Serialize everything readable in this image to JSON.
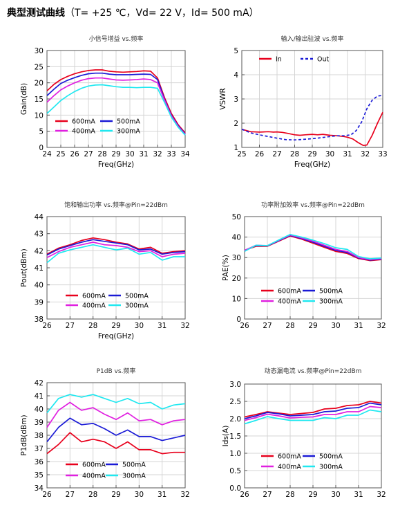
{
  "header": {
    "title": "典型测试曲线",
    "conditions": "（T= +25 ℃，Vd= 22 V，Id= 500 mA）"
  },
  "chart_data": [
    {
      "type": "line",
      "title": "小信号增益 vs.频率",
      "xlabel": "Freq(GHz)",
      "ylabel": "Gain(dB)",
      "xlim": [
        24,
        34
      ],
      "ylim": [
        0,
        30
      ],
      "xticks": [
        24,
        25,
        26,
        27,
        28,
        29,
        30,
        31,
        32,
        33,
        34
      ],
      "yticks": [
        0,
        5,
        10,
        15,
        20,
        25,
        30
      ],
      "grid": true,
      "legend": "bottom-center",
      "series": [
        {
          "name": "600mA",
          "color": "#e8001c",
          "dash": false,
          "x": [
            24,
            24.5,
            25,
            25.5,
            26,
            26.5,
            27,
            27.5,
            28,
            28.5,
            29,
            29.5,
            30,
            30.5,
            31,
            31.5,
            32,
            32.5,
            33,
            33.5,
            34
          ],
          "y": [
            17.5,
            19.5,
            21,
            22,
            22.8,
            23.4,
            23.8,
            24,
            24,
            23.6,
            23.4,
            23.3,
            23.4,
            23.5,
            23.7,
            23.6,
            21.5,
            15.5,
            10.5,
            7,
            4.5
          ]
        },
        {
          "name": "500mA",
          "color": "#1a1ad6",
          "dash": false,
          "x": [
            24,
            24.5,
            25,
            25.5,
            26,
            26.5,
            27,
            27.5,
            28,
            28.5,
            29,
            29.5,
            30,
            30.5,
            31,
            31.5,
            32,
            32.5,
            33,
            33.5,
            34
          ],
          "y": [
            16,
            18,
            19.8,
            20.8,
            21.6,
            22.3,
            22.8,
            23,
            23,
            22.7,
            22.5,
            22.5,
            22.5,
            22.6,
            22.7,
            22.6,
            21,
            15,
            10,
            6.7,
            4.2
          ]
        },
        {
          "name": "400mA",
          "color": "#e020e0",
          "dash": false,
          "x": [
            24,
            24.5,
            25,
            25.5,
            26,
            26.5,
            27,
            27.5,
            28,
            28.5,
            29,
            29.5,
            30,
            30.5,
            31,
            31.5,
            32,
            32.5,
            33,
            33.5,
            34
          ],
          "y": [
            14,
            16,
            17.8,
            19,
            20,
            20.8,
            21.3,
            21.5,
            21.5,
            21.2,
            20.9,
            20.8,
            20.9,
            21,
            21.2,
            21,
            20,
            14.7,
            9.8,
            6.5,
            4
          ]
        },
        {
          "name": "300mA",
          "color": "#20e8f0",
          "dash": false,
          "x": [
            24,
            24.5,
            25,
            25.5,
            26,
            26.5,
            27,
            27.5,
            28,
            28.5,
            29,
            29.5,
            30,
            30.5,
            31,
            31.5,
            32,
            32.5,
            33,
            33.5,
            34
          ],
          "y": [
            10.5,
            12.5,
            14.5,
            16,
            17.3,
            18.3,
            19,
            19.3,
            19.4,
            19.1,
            18.8,
            18.6,
            18.6,
            18.5,
            18.6,
            18.6,
            18.3,
            14,
            9.4,
            6.2,
            3.8
          ]
        }
      ]
    },
    {
      "type": "line",
      "title": "输入/输出驻波 vs.频率",
      "xlabel": "Freq(GHz)",
      "ylabel": "VSWR",
      "xlim": [
        25,
        33
      ],
      "ylim": [
        1,
        5
      ],
      "xticks": [
        25,
        26,
        27,
        28,
        29,
        30,
        31,
        32,
        33
      ],
      "yticks": [
        1,
        2,
        3,
        4,
        5
      ],
      "grid": true,
      "legend": "top",
      "series": [
        {
          "name": "In",
          "color": "#e8001c",
          "dash": false,
          "x": [
            25,
            25.5,
            26,
            26.5,
            26.8,
            27,
            27.3,
            27.6,
            28,
            28.3,
            28.6,
            29,
            29.3,
            29.6,
            30,
            30.4,
            30.8,
            31,
            31.3,
            31.6,
            31.9,
            32.1,
            32.4,
            32.7,
            33
          ],
          "y": [
            1.75,
            1.65,
            1.63,
            1.65,
            1.63,
            1.64,
            1.62,
            1.58,
            1.52,
            1.5,
            1.52,
            1.54,
            1.52,
            1.54,
            1.5,
            1.48,
            1.45,
            1.42,
            1.35,
            1.2,
            1.08,
            1.1,
            1.5,
            2,
            2.45
          ]
        },
        {
          "name": "Out",
          "color": "#1a1ad6",
          "dash": true,
          "x": [
            25,
            25.5,
            26,
            26.5,
            27,
            27.5,
            28,
            28.5,
            29,
            29.5,
            30,
            30.4,
            30.8,
            31.2,
            31.5,
            31.8,
            32.1,
            32.4,
            32.7,
            33
          ],
          "y": [
            1.75,
            1.6,
            1.52,
            1.45,
            1.38,
            1.32,
            1.31,
            1.33,
            1.36,
            1.4,
            1.45,
            1.48,
            1.48,
            1.52,
            1.7,
            2.05,
            2.6,
            2.95,
            3.12,
            3.15
          ]
        }
      ]
    },
    {
      "type": "line",
      "title": "饱和输出功率 vs.频率@Pin=22dBm",
      "xlabel": "Freq(GHz)",
      "ylabel": "Pout(dBm)",
      "xlim": [
        26,
        32
      ],
      "ylim": [
        38,
        44
      ],
      "xticks": [
        26,
        27,
        28,
        29,
        30,
        31,
        32
      ],
      "yticks": [
        38,
        39,
        40,
        41,
        42,
        43,
        44
      ],
      "grid": true,
      "legend": "bottom-center",
      "series": [
        {
          "name": "600mA",
          "color": "#e8001c",
          "dash": false,
          "x": [
            26,
            26.5,
            27,
            27.5,
            28,
            28.5,
            29,
            29.5,
            30,
            30.5,
            31,
            31.5,
            32
          ],
          "y": [
            41.8,
            42.15,
            42.35,
            42.6,
            42.75,
            42.65,
            42.5,
            42.4,
            42.1,
            42.2,
            41.85,
            41.95,
            42
          ]
        },
        {
          "name": "500mA",
          "color": "#1a1ad6",
          "dash": false,
          "x": [
            26,
            26.5,
            27,
            27.5,
            28,
            28.5,
            29,
            29.5,
            30,
            30.5,
            31,
            31.5,
            32
          ],
          "y": [
            41.75,
            42.1,
            42.3,
            42.5,
            42.65,
            42.55,
            42.45,
            42.35,
            42.05,
            42.1,
            41.8,
            41.9,
            41.95
          ]
        },
        {
          "name": "400mA",
          "color": "#e020e0",
          "dash": false,
          "x": [
            26,
            26.5,
            27,
            27.5,
            28,
            28.5,
            29,
            29.5,
            30,
            30.5,
            31,
            31.5,
            32
          ],
          "y": [
            41.6,
            41.95,
            42.2,
            42.35,
            42.5,
            42.35,
            42.3,
            42.2,
            41.95,
            42.0,
            41.65,
            41.8,
            41.85
          ]
        },
        {
          "name": "300mA",
          "color": "#20e8f0",
          "dash": false,
          "x": [
            26,
            26.5,
            27,
            27.5,
            28,
            28.5,
            29,
            29.5,
            30,
            30.5,
            31,
            31.5,
            32
          ],
          "y": [
            41.3,
            41.85,
            42.05,
            42.2,
            42.35,
            42.2,
            42.05,
            42.15,
            41.8,
            41.9,
            41.45,
            41.65,
            41.65
          ]
        }
      ]
    },
    {
      "type": "line",
      "title": "功率附加效率 vs.频率@Pin=22dBm",
      "xlabel": "",
      "ylabel": "PAE(%)",
      "xlim": [
        26,
        32
      ],
      "ylim": [
        0,
        50
      ],
      "xticks": [
        26,
        27,
        28,
        29,
        30,
        31,
        32
      ],
      "yticks": [
        0,
        10,
        20,
        30,
        40,
        50
      ],
      "grid": true,
      "legend": "bottom-center",
      "series": [
        {
          "name": "600mA",
          "color": "#e8001c",
          "dash": false,
          "x": [
            26,
            26.5,
            27,
            27.5,
            28,
            28.5,
            29,
            29.5,
            30,
            30.5,
            31,
            31.5,
            32
          ],
          "y": [
            33.5,
            35.5,
            35.5,
            38,
            40.5,
            39,
            37,
            35,
            33,
            32,
            29.5,
            28.5,
            29
          ]
        },
        {
          "name": "500mA",
          "color": "#1a1ad6",
          "dash": false,
          "x": [
            26,
            26.5,
            27,
            27.5,
            28,
            28.5,
            29,
            29.5,
            30,
            30.5,
            31,
            31.5,
            32
          ],
          "y": [
            33.5,
            35.8,
            35.7,
            38.2,
            40.8,
            39.3,
            37.5,
            35.5,
            33.5,
            32.5,
            29.8,
            28.8,
            29.2
          ]
        },
        {
          "name": "400mA",
          "color": "#e020e0",
          "dash": false,
          "x": [
            26,
            26.5,
            27,
            27.5,
            28,
            28.5,
            29,
            29.5,
            30,
            30.5,
            31,
            31.5,
            32
          ],
          "y": [
            33.5,
            36,
            35.8,
            38.4,
            41,
            39.6,
            38,
            36,
            34,
            33,
            30,
            29,
            29.4
          ]
        },
        {
          "name": "300mA",
          "color": "#20e8f0",
          "dash": false,
          "x": [
            26,
            26.5,
            27,
            27.5,
            28,
            28.5,
            29,
            29.5,
            30,
            30.5,
            31,
            31.5,
            32
          ],
          "y": [
            33,
            36,
            35.8,
            38.6,
            41.3,
            40,
            38.5,
            36.8,
            34.8,
            34,
            30.5,
            29.4,
            29.8
          ]
        }
      ]
    },
    {
      "type": "line",
      "title": "P1dB vs.频率",
      "xlabel": "",
      "ylabel": "P1dB(dBm)",
      "xlim": [
        26,
        32
      ],
      "ylim": [
        34,
        42
      ],
      "xticks": [
        26,
        27,
        28,
        29,
        30,
        31,
        32
      ],
      "yticks": [
        34,
        35,
        36,
        37,
        38,
        39,
        40,
        41,
        42
      ],
      "grid": true,
      "legend": "bottom-center",
      "series": [
        {
          "name": "600mA",
          "color": "#e8001c",
          "dash": false,
          "x": [
            26,
            26.5,
            27,
            27.5,
            28,
            28.5,
            29,
            29.5,
            30,
            30.5,
            31,
            31.5,
            32
          ],
          "y": [
            36.6,
            37.3,
            38.2,
            37.5,
            37.7,
            37.5,
            37,
            37.5,
            36.9,
            36.9,
            36.6,
            36.7,
            36.7
          ]
        },
        {
          "name": "500mA",
          "color": "#1a1ad6",
          "dash": false,
          "x": [
            26,
            26.5,
            27,
            27.5,
            28,
            28.5,
            29,
            29.5,
            30,
            30.5,
            31,
            31.5,
            32
          ],
          "y": [
            37.5,
            38.6,
            39.3,
            38.8,
            38.9,
            38.5,
            38,
            38.4,
            37.9,
            37.9,
            37.6,
            37.8,
            38
          ]
        },
        {
          "name": "400mA",
          "color": "#e020e0",
          "dash": false,
          "x": [
            26,
            26.5,
            27,
            27.5,
            28,
            28.5,
            29,
            29.5,
            30,
            30.5,
            31,
            31.5,
            32
          ],
          "y": [
            38.6,
            39.9,
            40.5,
            39.9,
            40.1,
            39.6,
            39.2,
            39.7,
            39.1,
            39.2,
            38.8,
            39.1,
            39.2
          ]
        },
        {
          "name": "300mA",
          "color": "#20e8f0",
          "dash": false,
          "x": [
            26,
            26.5,
            27,
            27.5,
            28,
            28.5,
            29,
            29.5,
            30,
            30.5,
            31,
            31.5,
            32
          ],
          "y": [
            39.7,
            40.8,
            41.1,
            40.9,
            41.1,
            40.8,
            40.5,
            40.8,
            40.4,
            40.5,
            40,
            40.3,
            40.4
          ]
        }
      ]
    },
    {
      "type": "line",
      "title": "动态漏电流 vs.频率@Pin=22dBm",
      "xlabel": "",
      "ylabel": "Ids(A)",
      "xlim": [
        26,
        32
      ],
      "ylim": [
        0,
        3
      ],
      "xticks": [
        26,
        27,
        28,
        29,
        30,
        31,
        32
      ],
      "yticks": [
        0,
        0.5,
        1,
        1.5,
        2,
        2.5,
        3
      ],
      "yticklabels": [
        "0.0",
        "0.5",
        "1.0",
        "1.5",
        "2.0",
        "2.5",
        "3.0"
      ],
      "grid": true,
      "legend": "bottom-center",
      "series": [
        {
          "name": "600mA",
          "color": "#e8001c",
          "dash": false,
          "x": [
            26,
            26.5,
            27,
            27.5,
            28,
            28.5,
            29,
            29.5,
            30,
            30.5,
            31,
            31.5,
            32
          ],
          "y": [
            2.05,
            2.12,
            2.2,
            2.16,
            2.12,
            2.15,
            2.18,
            2.28,
            2.3,
            2.38,
            2.4,
            2.5,
            2.45
          ]
        },
        {
          "name": "500mA",
          "color": "#1a1ad6",
          "dash": false,
          "x": [
            26,
            26.5,
            27,
            27.5,
            28,
            28.5,
            29,
            29.5,
            30,
            30.5,
            31,
            31.5,
            32
          ],
          "y": [
            2.0,
            2.08,
            2.18,
            2.14,
            2.08,
            2.1,
            2.12,
            2.2,
            2.22,
            2.3,
            2.32,
            2.45,
            2.4
          ]
        },
        {
          "name": "400mA",
          "color": "#e020e0",
          "dash": false,
          "x": [
            26,
            26.5,
            27,
            27.5,
            28,
            28.5,
            29,
            29.5,
            30,
            30.5,
            31,
            31.5,
            32
          ],
          "y": [
            1.95,
            2.03,
            2.13,
            2.08,
            2.02,
            2.04,
            2.05,
            2.12,
            2.12,
            2.2,
            2.2,
            2.35,
            2.32
          ]
        },
        {
          "name": "300mA",
          "color": "#20e8f0",
          "dash": false,
          "x": [
            26,
            26.5,
            27,
            27.5,
            28,
            28.5,
            29,
            29.5,
            30,
            30.5,
            31,
            31.5,
            32
          ],
          "y": [
            1.85,
            1.95,
            2.06,
            2.0,
            1.95,
            1.95,
            1.95,
            2.03,
            2.0,
            2.1,
            2.1,
            2.25,
            2.2
          ]
        }
      ]
    }
  ]
}
